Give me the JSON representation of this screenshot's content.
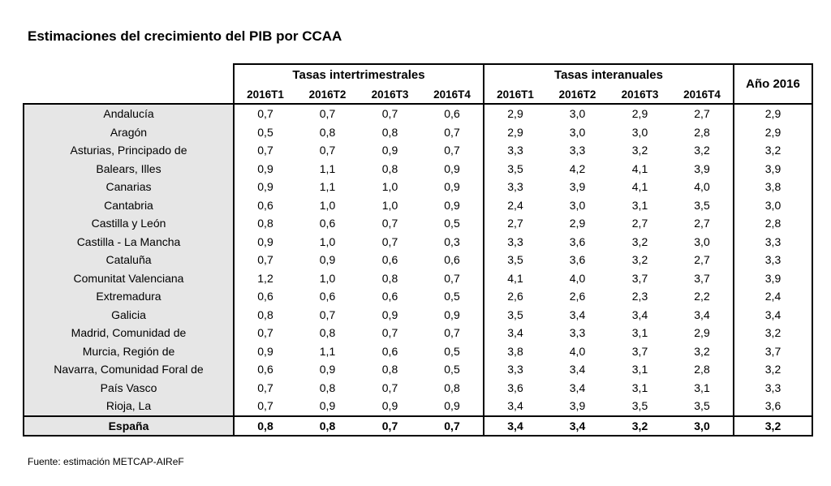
{
  "title": "Estimaciones del crecimiento del PIB por CCAA",
  "source": "Fuente: estimación METCAP-AIReF",
  "headers": {
    "intertrimestrales": "Tasas intertrimestrales",
    "interanuales": "Tasas interanuales",
    "year": "Año 2016",
    "quarters": [
      "2016T1",
      "2016T2",
      "2016T3",
      "2016T4"
    ]
  },
  "rows": [
    {
      "name": "Andalucía",
      "v": [
        "0,7",
        "0,7",
        "0,7",
        "0,6",
        "2,9",
        "3,0",
        "2,9",
        "2,7",
        "2,9"
      ]
    },
    {
      "name": "Aragón",
      "v": [
        "0,5",
        "0,8",
        "0,8",
        "0,7",
        "2,9",
        "3,0",
        "3,0",
        "2,8",
        "2,9"
      ]
    },
    {
      "name": "Asturias, Principado de",
      "v": [
        "0,7",
        "0,7",
        "0,9",
        "0,7",
        "3,3",
        "3,3",
        "3,2",
        "3,2",
        "3,2"
      ]
    },
    {
      "name": "Balears, Illes",
      "v": [
        "0,9",
        "1,1",
        "0,8",
        "0,9",
        "3,5",
        "4,2",
        "4,1",
        "3,9",
        "3,9"
      ]
    },
    {
      "name": "Canarias",
      "v": [
        "0,9",
        "1,1",
        "1,0",
        "0,9",
        "3,3",
        "3,9",
        "4,1",
        "4,0",
        "3,8"
      ]
    },
    {
      "name": "Cantabria",
      "v": [
        "0,6",
        "1,0",
        "1,0",
        "0,9",
        "2,4",
        "3,0",
        "3,1",
        "3,5",
        "3,0"
      ]
    },
    {
      "name": "Castilla y León",
      "v": [
        "0,8",
        "0,6",
        "0,7",
        "0,5",
        "2,7",
        "2,9",
        "2,7",
        "2,7",
        "2,8"
      ]
    },
    {
      "name": "Castilla - La Mancha",
      "v": [
        "0,9",
        "1,0",
        "0,7",
        "0,3",
        "3,3",
        "3,6",
        "3,2",
        "3,0",
        "3,3"
      ]
    },
    {
      "name": "Cataluña",
      "v": [
        "0,7",
        "0,9",
        "0,6",
        "0,6",
        "3,5",
        "3,6",
        "3,2",
        "2,7",
        "3,3"
      ]
    },
    {
      "name": "Comunitat Valenciana",
      "v": [
        "1,2",
        "1,0",
        "0,8",
        "0,7",
        "4,1",
        "4,0",
        "3,7",
        "3,7",
        "3,9"
      ]
    },
    {
      "name": "Extremadura",
      "v": [
        "0,6",
        "0,6",
        "0,6",
        "0,5",
        "2,6",
        "2,6",
        "2,3",
        "2,2",
        "2,4"
      ]
    },
    {
      "name": "Galicia",
      "v": [
        "0,8",
        "0,7",
        "0,9",
        "0,9",
        "3,5",
        "3,4",
        "3,4",
        "3,4",
        "3,4"
      ]
    },
    {
      "name": "Madrid, Comunidad de",
      "v": [
        "0,7",
        "0,8",
        "0,7",
        "0,7",
        "3,4",
        "3,3",
        "3,1",
        "2,9",
        "3,2"
      ]
    },
    {
      "name": "Murcia, Región de",
      "v": [
        "0,9",
        "1,1",
        "0,6",
        "0,5",
        "3,8",
        "4,0",
        "3,7",
        "3,2",
        "3,7"
      ]
    },
    {
      "name": "Navarra, Comunidad Foral de",
      "v": [
        "0,6",
        "0,9",
        "0,8",
        "0,5",
        "3,3",
        "3,4",
        "3,1",
        "2,8",
        "3,2"
      ]
    },
    {
      "name": "País Vasco",
      "v": [
        "0,7",
        "0,8",
        "0,7",
        "0,8",
        "3,6",
        "3,4",
        "3,1",
        "3,1",
        "3,3"
      ]
    },
    {
      "name": "Rioja, La",
      "v": [
        "0,7",
        "0,9",
        "0,9",
        "0,9",
        "3,4",
        "3,9",
        "3,5",
        "3,5",
        "3,6"
      ]
    }
  ],
  "total": {
    "name": "España",
    "v": [
      "0,8",
      "0,8",
      "0,7",
      "0,7",
      "3,4",
      "3,4",
      "3,2",
      "3,0",
      "3,2"
    ]
  }
}
